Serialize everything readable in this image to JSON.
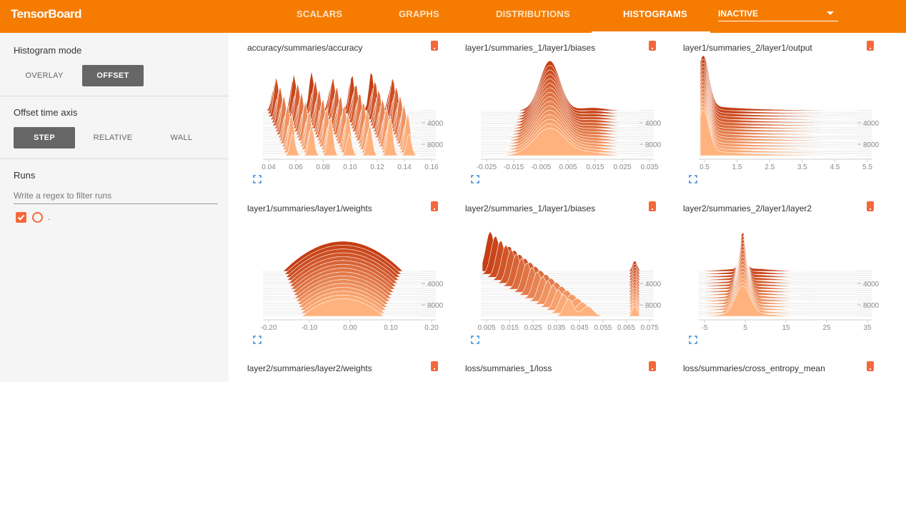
{
  "app_title": "TensorBoard",
  "tabs": [
    "SCALARS",
    "GRAPHS",
    "DISTRIBUTIONS",
    "HISTOGRAMS"
  ],
  "active_tab": "HISTOGRAMS",
  "run_selector": {
    "value": "INACTIVE"
  },
  "sidebar": {
    "histogram_mode": {
      "title": "Histogram mode",
      "options": [
        "OVERLAY",
        "OFFSET"
      ],
      "selected": "OFFSET"
    },
    "offset_time_axis": {
      "title": "Offset time axis",
      "options": [
        "STEP",
        "RELATIVE",
        "WALL"
      ],
      "selected": "STEP"
    },
    "runs": {
      "title": "Runs",
      "filter_placeholder": "Write a regex to filter runs",
      "items": [
        {
          "label": "."
        }
      ]
    }
  },
  "colors": {
    "accent": "#f57c00",
    "histogram_dark": "#c43d13",
    "histogram_light": "#ffb27d"
  },
  "cards": [
    {
      "title": "accuracy/summaries/accuracy",
      "x_ticks": [
        "0.04",
        "0.06",
        "0.08",
        "0.10",
        "0.12",
        "0.14",
        "0.16"
      ],
      "y_ticks": [
        "4000",
        "8000"
      ],
      "shape": "accuracy"
    },
    {
      "title": "layer1/summaries_1/layer1/biases",
      "x_ticks": [
        "-0.025",
        "-0.015",
        "-0.005",
        "0.005",
        "0.015",
        "0.025",
        "0.035"
      ],
      "y_ticks": [
        "4000",
        "8000"
      ],
      "shape": "peak"
    },
    {
      "title": "layer1/summaries_2/layer1/output",
      "x_ticks": [
        "0.5",
        "1.5",
        "2.5",
        "3.5",
        "4.5",
        "5.5"
      ],
      "y_ticks": [
        "4000",
        "8000"
      ],
      "shape": "spike"
    },
    {
      "title": "layer1/summaries/layer1/weights",
      "x_ticks": [
        "-0.20",
        "-0.10",
        "0.00",
        "0.10",
        "0.20"
      ],
      "y_ticks": [
        "4000",
        "8000"
      ],
      "shape": "dome"
    },
    {
      "title": "layer2/summaries_1/layer1/biases",
      "x_ticks": [
        "0.005",
        "0.015",
        "0.025",
        "0.035",
        "0.045",
        "0.055",
        "0.065",
        "0.075"
      ],
      "y_ticks": [
        "4000",
        "8000"
      ],
      "shape": "decay"
    },
    {
      "title": "layer2/summaries_2/layer1/layer2",
      "x_ticks": [
        "-5",
        "5",
        "15",
        "25",
        "35"
      ],
      "y_ticks": [
        "4000",
        "8000"
      ],
      "shape": "narrow"
    },
    {
      "title": "layer2/summaries/layer2/weights",
      "x_ticks": [],
      "y_ticks": [],
      "shape": "none"
    },
    {
      "title": "loss/summaries_1/loss",
      "x_ticks": [],
      "y_ticks": [],
      "shape": "none"
    },
    {
      "title": "loss/summaries/cross_entropy_mean",
      "x_ticks": [],
      "y_ticks": [],
      "shape": "none"
    }
  ]
}
